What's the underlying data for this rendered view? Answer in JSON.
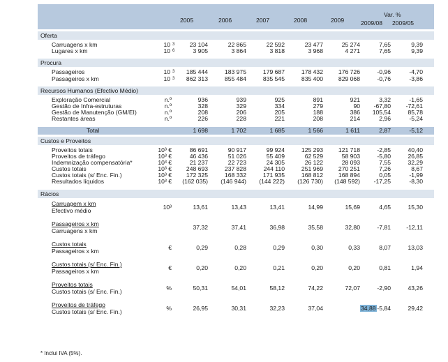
{
  "header": {
    "years": [
      "2005",
      "2006",
      "2007",
      "2008",
      "2009"
    ],
    "var_title": "Var. %",
    "var_cols": [
      "2009/08",
      "2009/05"
    ]
  },
  "oferta": {
    "title": "Oferta",
    "rows": [
      {
        "label": "Carruagens x km",
        "unit": "10",
        "exp": "3",
        "v": [
          "23 104",
          "22 865",
          "22 592",
          "23 477",
          "25 274",
          "7,65",
          "9,39"
        ]
      },
      {
        "label": "Lugares x km",
        "unit": "10",
        "exp": "6",
        "v": [
          "3 905",
          "3 864",
          "3 818",
          "3 968",
          "4 271",
          "7,65",
          "9,39"
        ]
      }
    ]
  },
  "procura": {
    "title": "Procura",
    "rows": [
      {
        "label": "Passageiros",
        "unit": "10",
        "exp": "3",
        "v": [
          "185 444",
          "183 975",
          "179 687",
          "178 432",
          "176 726",
          "-0,96",
          "-4,70"
        ]
      },
      {
        "label": "Passageiros x km",
        "unit": "10",
        "exp": "3",
        "v": [
          "862 313",
          "855 484",
          "835 545",
          "835 400",
          "829 068",
          "-0,76",
          "-3,86"
        ]
      }
    ]
  },
  "rh": {
    "title": "Recursos Humanos (Efectivo Médio)",
    "rows": [
      {
        "label": "Exploração Comercial",
        "unit": "n.º",
        "v": [
          "936",
          "939",
          "925",
          "891",
          "921",
          "3,32",
          "-1,65"
        ]
      },
      {
        "label": "Gestão de Infra-estruturas",
        "unit": "n.º",
        "v": [
          "328",
          "329",
          "334",
          "279",
          "90",
          "-67,80",
          "-72,61"
        ]
      },
      {
        "label": "Gestão de Manutenção (GM/EI)",
        "unit": "n.º",
        "v": [
          "208",
          "206",
          "205",
          "188",
          "386",
          "105,54",
          "85,78"
        ]
      },
      {
        "label": "Restantes áreas",
        "unit": "n.º",
        "v": [
          "226",
          "228",
          "221",
          "208",
          "214",
          "2,96",
          "-5,24"
        ]
      }
    ],
    "total": {
      "label": "Total",
      "v": [
        "1 698",
        "1 702",
        "1 685",
        "1 566",
        "1 611",
        "2,87",
        "-5,12"
      ]
    }
  },
  "custos": {
    "title": "Custos e Proveitos",
    "rows": [
      {
        "label": "Proveitos totais",
        "unit": "10³ €",
        "v": [
          "86 691",
          "90 917",
          "99 924",
          "125 293",
          "121 718",
          "-2,85",
          "40,40"
        ]
      },
      {
        "label": "Proveitos de tráfego",
        "unit": "10³ €",
        "v": [
          "46 436",
          "51 026",
          "55 409",
          "62 529",
          "58 903",
          "-5,80",
          "26,85"
        ]
      },
      {
        "label": "Indemnização compensatória*",
        "unit": "10³ €",
        "v": [
          "21 237",
          "22 723",
          "24 305",
          "26 122",
          "28 093",
          "7,55",
          "32,29"
        ]
      },
      {
        "label": "Custos totais",
        "unit": "10³ €",
        "v": [
          "248 693",
          "237 828",
          "244 110",
          "251 969",
          "270 251",
          "7,26",
          "8,67"
        ]
      },
      {
        "label": "Custos totais (s/ Enc. Fin.)",
        "unit": "10³ €",
        "v": [
          "172 325",
          "168 332",
          "171 935",
          "168 812",
          "168 894",
          "0,05",
          "-1,99"
        ]
      },
      {
        "label": "Resultados líquidos",
        "unit": "10³ €",
        "v": [
          "(162 035)",
          "(146 944)",
          "(144 222)",
          "(126 730)",
          "(148 592)",
          "-17,25",
          "-8,30"
        ]
      }
    ]
  },
  "racios": {
    "title": "Rácios",
    "rows": [
      {
        "num": "Carruagem x km",
        "den": "Efectivo médio",
        "unit": "10³",
        "v": [
          "13,61",
          "13,43",
          "13,41",
          "14,99",
          "15,69",
          "4,65",
          "15,30"
        ]
      },
      {
        "num": "Passageiros x km",
        "den": "Carruagens x km",
        "unit": "",
        "v": [
          "37,32",
          "37,41",
          "36,98",
          "35,58",
          "32,80",
          "-7,81",
          "-12,11"
        ]
      },
      {
        "num": "Custos totais",
        "den": "Passageiros x km",
        "unit": "€",
        "v": [
          "0,29",
          "0,28",
          "0,29",
          "0,30",
          "0,33",
          "8,07",
          "13,03"
        ]
      },
      {
        "num": "Custos totais (s/ Enc. Fin.)",
        "den": "Passageiros x km",
        "unit": "€",
        "v": [
          "0,20",
          "0,20",
          "0,21",
          "0,20",
          "0,20",
          "0,81",
          "1,94"
        ]
      },
      {
        "num": "Proveitos totais",
        "den": "Custos totais (s/ Enc. Fin.)",
        "unit": "%",
        "v": [
          "50,31",
          "54,01",
          "58,12",
          "74,22",
          "72,07",
          "-2,90",
          "43,26"
        ]
      },
      {
        "num": "Proveitos de tráfego",
        "den": "Custos totais (s/ Enc. Fin.)",
        "unit": "%",
        "v": [
          "26,95",
          "30,31",
          "32,23",
          "37,04",
          "34,88",
          "-5,84",
          "29,42"
        ]
      }
    ]
  },
  "footnote": "* Inclui IVA (5%)."
}
